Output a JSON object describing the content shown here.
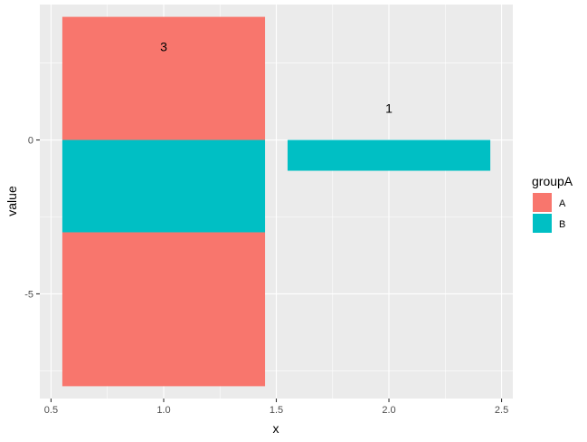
{
  "chart_data": {
    "type": "bar",
    "stacked": true,
    "xlabel": "x",
    "ylabel": "value",
    "xlim": [
      0.45,
      2.55
    ],
    "ylim": [
      -8.4,
      4.4
    ],
    "x_ticks": [
      {
        "value": 0.5,
        "label": "0.5"
      },
      {
        "value": 1.0,
        "label": "1.0"
      },
      {
        "value": 1.5,
        "label": "1.5"
      },
      {
        "value": 2.0,
        "label": "2.0"
      },
      {
        "value": 2.5,
        "label": "2.5"
      }
    ],
    "y_ticks": [
      {
        "value": 0,
        "label": "0"
      },
      {
        "value": -5,
        "label": "-5"
      }
    ],
    "grid": true,
    "bar_width": 0.9,
    "legend": {
      "title": "groupA",
      "position": "right",
      "entries": [
        {
          "label": "A",
          "color": "#F8766D"
        },
        {
          "label": "B",
          "color": "#00BFC4"
        }
      ]
    },
    "bars": [
      {
        "x": 1,
        "group": "A",
        "ymin": 0,
        "ymax": 4
      },
      {
        "x": 1,
        "group": "B",
        "ymin": -3,
        "ymax": 0
      },
      {
        "x": 1,
        "group": "A",
        "ymin": -8,
        "ymax": -3
      },
      {
        "x": 2,
        "group": "B",
        "ymin": -1,
        "ymax": 0
      }
    ],
    "annotations": [
      {
        "x": 1,
        "y": 3,
        "text": "3"
      },
      {
        "x": 2,
        "y": 1,
        "text": "1"
      }
    ],
    "colors": {
      "panel_background": "#EBEBEB",
      "grid_major": "#FFFFFF",
      "A": "#F8766D",
      "B": "#00BFC4"
    }
  }
}
